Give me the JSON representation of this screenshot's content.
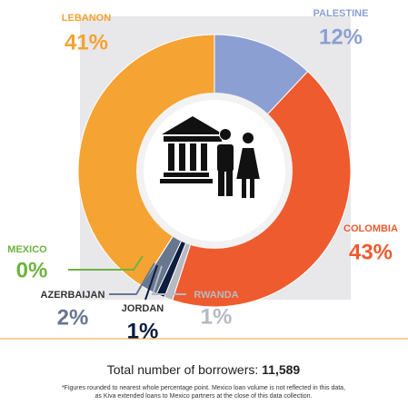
{
  "chart_data": {
    "type": "pie",
    "donut": true,
    "categories": [
      "PALESTINE",
      "COLOMBIA",
      "RWANDA",
      "JORDAN",
      "AZERBAIJAN",
      "MEXICO",
      "LEBANON"
    ],
    "values": [
      12,
      43,
      1,
      1,
      2,
      0,
      41
    ],
    "value_labels": [
      "12%",
      "43%",
      "1%",
      "1%",
      "2%",
      "0%",
      "41%"
    ],
    "colors": [
      "#8c9fd3",
      "#ee5b2e",
      "#b6bac3",
      "#0e1c3f",
      "#67778f",
      "#6db33f",
      "#f5a332"
    ]
  },
  "footer": {
    "total_label": "Total number of borrowers:",
    "total": "11,589",
    "notes": [
      "*Figures rounded to nearest whole percentage point. Mexico loan volume is not reflected in this data,",
      "as Kiva extended loans to Mexico partners at the close of this data collection."
    ]
  }
}
